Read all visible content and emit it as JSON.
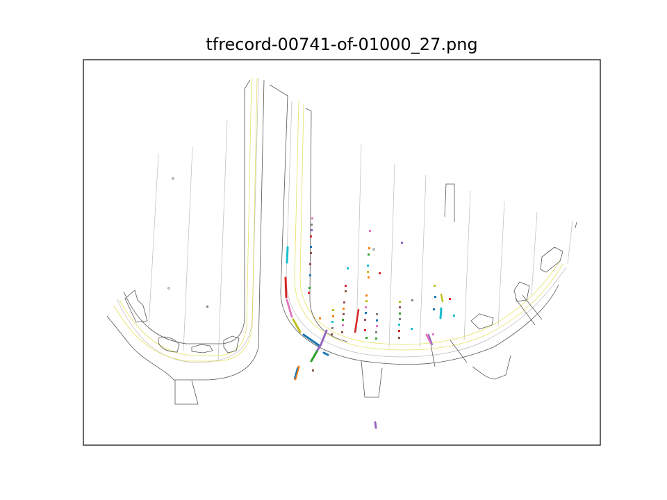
{
  "figure": {
    "title": "tfrecord-00741-of-01000_27.png"
  },
  "scene": {
    "type": "map",
    "road_line_color": "#d9d92a",
    "boundary_color": "#555555",
    "lane_color": "#bbbbbb",
    "agent_palette": [
      "#1f77b4",
      "#ff7f0e",
      "#2ca02c",
      "#d62728",
      "#9467bd",
      "#8c564b",
      "#e377c2",
      "#7f7f7f",
      "#bcbd22",
      "#17becf"
    ]
  }
}
